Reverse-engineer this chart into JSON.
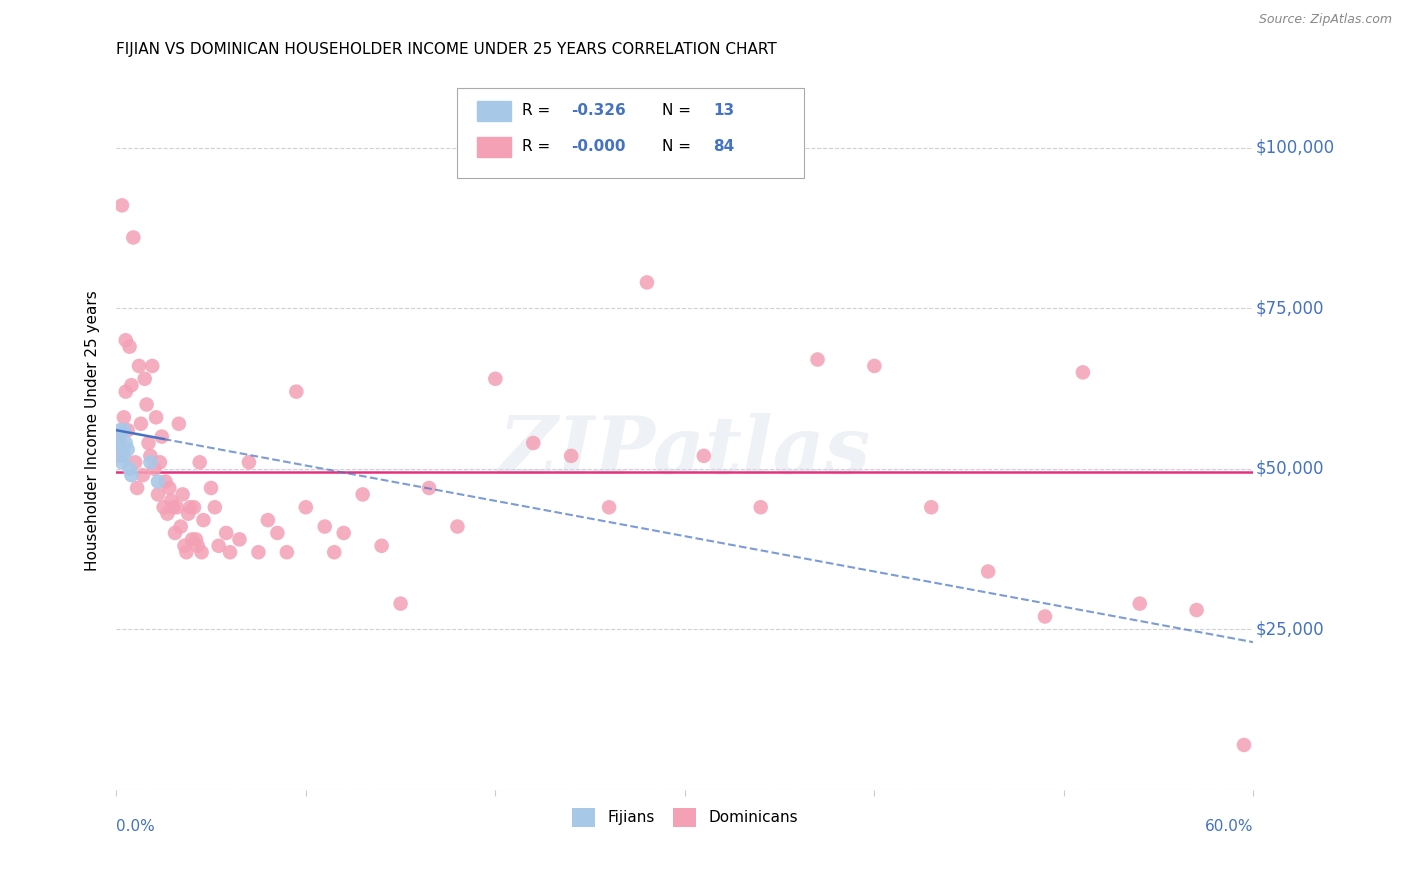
{
  "title": "FIJIAN VS DOMINICAN HOUSEHOLDER INCOME UNDER 25 YEARS CORRELATION CHART",
  "source": "Source: ZipAtlas.com",
  "ylabel": "Householder Income Under 25 years",
  "xlim": [
    0.0,
    0.6
  ],
  "ylim": [
    0,
    112000
  ],
  "yticks": [
    0,
    25000,
    50000,
    75000,
    100000
  ],
  "ytick_labels": [
    "",
    "$25,000",
    "$50,000",
    "$75,000",
    "$100,000"
  ],
  "fijian_color": "#a8c8e8",
  "dominican_color": "#f4a0b5",
  "trend_fijian_color": "#4472C4",
  "trend_dominican_color": "#e8307a",
  "watermark": "ZIPatlas",
  "background_color": "#ffffff",
  "grid_color": "#cccccc",
  "fijians_x": [
    0.001,
    0.002,
    0.002,
    0.003,
    0.003,
    0.004,
    0.004,
    0.005,
    0.006,
    0.007,
    0.008,
    0.018,
    0.022
  ],
  "fijians_y": [
    55000,
    56000,
    54000,
    53000,
    51000,
    52000,
    56000,
    54000,
    53000,
    50000,
    49000,
    51000,
    48000
  ],
  "dominicans_x": [
    0.001,
    0.002,
    0.003,
    0.004,
    0.005,
    0.005,
    0.006,
    0.007,
    0.008,
    0.009,
    0.01,
    0.011,
    0.012,
    0.013,
    0.014,
    0.015,
    0.016,
    0.017,
    0.018,
    0.019,
    0.02,
    0.021,
    0.022,
    0.023,
    0.024,
    0.025,
    0.026,
    0.027,
    0.028,
    0.029,
    0.03,
    0.031,
    0.032,
    0.033,
    0.034,
    0.035,
    0.036,
    0.037,
    0.038,
    0.039,
    0.04,
    0.041,
    0.042,
    0.043,
    0.044,
    0.045,
    0.046,
    0.05,
    0.052,
    0.054,
    0.058,
    0.06,
    0.065,
    0.07,
    0.075,
    0.08,
    0.085,
    0.09,
    0.095,
    0.1,
    0.11,
    0.115,
    0.12,
    0.13,
    0.14,
    0.15,
    0.165,
    0.18,
    0.2,
    0.22,
    0.24,
    0.26,
    0.28,
    0.31,
    0.34,
    0.37,
    0.4,
    0.43,
    0.46,
    0.49,
    0.51,
    0.54,
    0.57,
    0.595
  ],
  "dominicans_y": [
    55000,
    52000,
    91000,
    58000,
    70000,
    62000,
    56000,
    69000,
    63000,
    86000,
    51000,
    47000,
    66000,
    57000,
    49000,
    64000,
    60000,
    54000,
    52000,
    66000,
    50000,
    58000,
    46000,
    51000,
    55000,
    44000,
    48000,
    43000,
    47000,
    45000,
    44000,
    40000,
    44000,
    57000,
    41000,
    46000,
    38000,
    37000,
    43000,
    44000,
    39000,
    44000,
    39000,
    38000,
    51000,
    37000,
    42000,
    47000,
    44000,
    38000,
    40000,
    37000,
    39000,
    51000,
    37000,
    42000,
    40000,
    37000,
    62000,
    44000,
    41000,
    37000,
    40000,
    46000,
    38000,
    29000,
    47000,
    41000,
    64000,
    54000,
    52000,
    44000,
    79000,
    52000,
    44000,
    67000,
    66000,
    44000,
    34000,
    27000,
    65000,
    29000,
    28000,
    7000
  ],
  "fij_trend_x0": 0.0,
  "fij_trend_y0": 56000,
  "fij_trend_x1": 0.6,
  "fij_trend_y1": 23000,
  "dom_trend_y": 49500
}
